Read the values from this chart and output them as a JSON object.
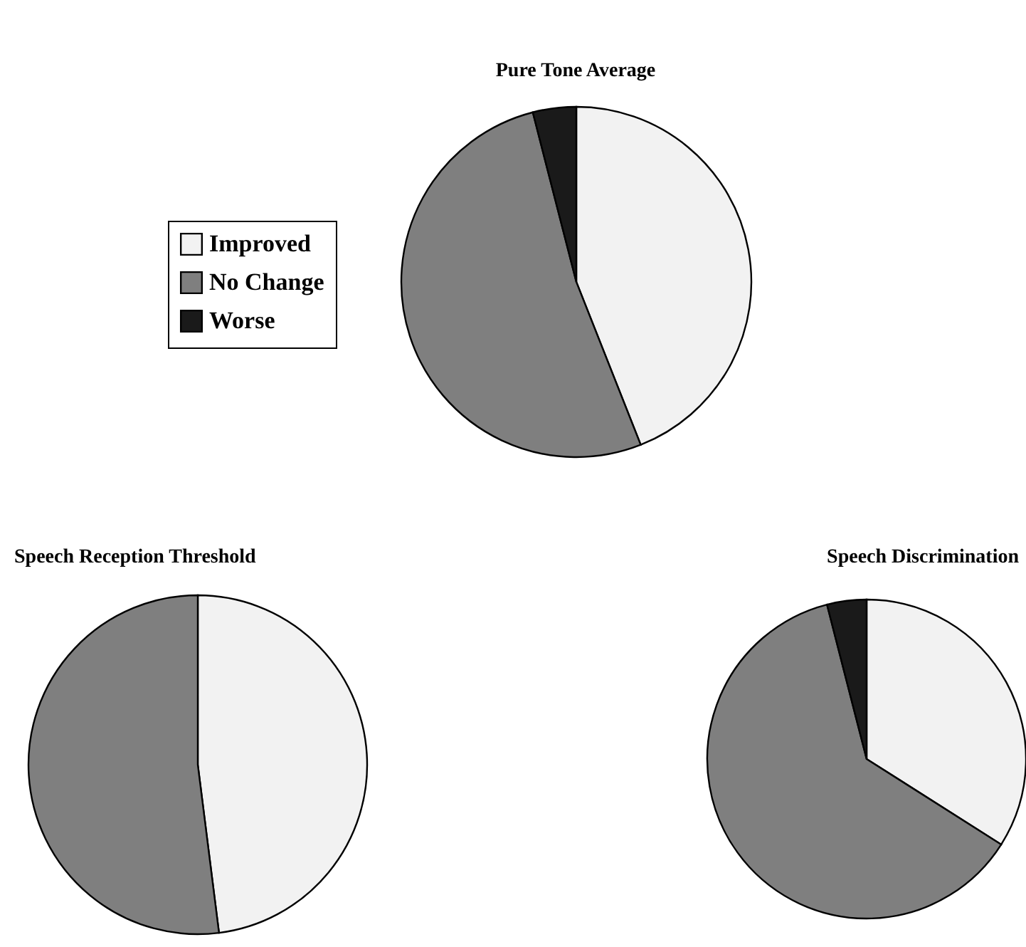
{
  "chart_data": [
    {
      "type": "pie",
      "title": "Pure Tone Average",
      "categories": [
        "Improved",
        "No Change",
        "Worse"
      ],
      "values": [
        44,
        52,
        4
      ],
      "colors": [
        "#f2f2f2",
        "#7f7f7f",
        "#1a1a1a"
      ],
      "legend": "left"
    },
    {
      "type": "pie",
      "title": "Speech Reception Threshold",
      "categories": [
        null,
        null
      ],
      "values": [
        48,
        52
      ],
      "colors": [
        "#f2f2f2",
        "#7f7f7f"
      ]
    },
    {
      "type": "pie",
      "title": "Speech Discrimination",
      "categories": [
        null,
        null,
        null
      ],
      "values": [
        34,
        62,
        4
      ],
      "colors": [
        "#f2f2f2",
        "#7f7f7f",
        "#1a1a1a"
      ]
    }
  ]
}
